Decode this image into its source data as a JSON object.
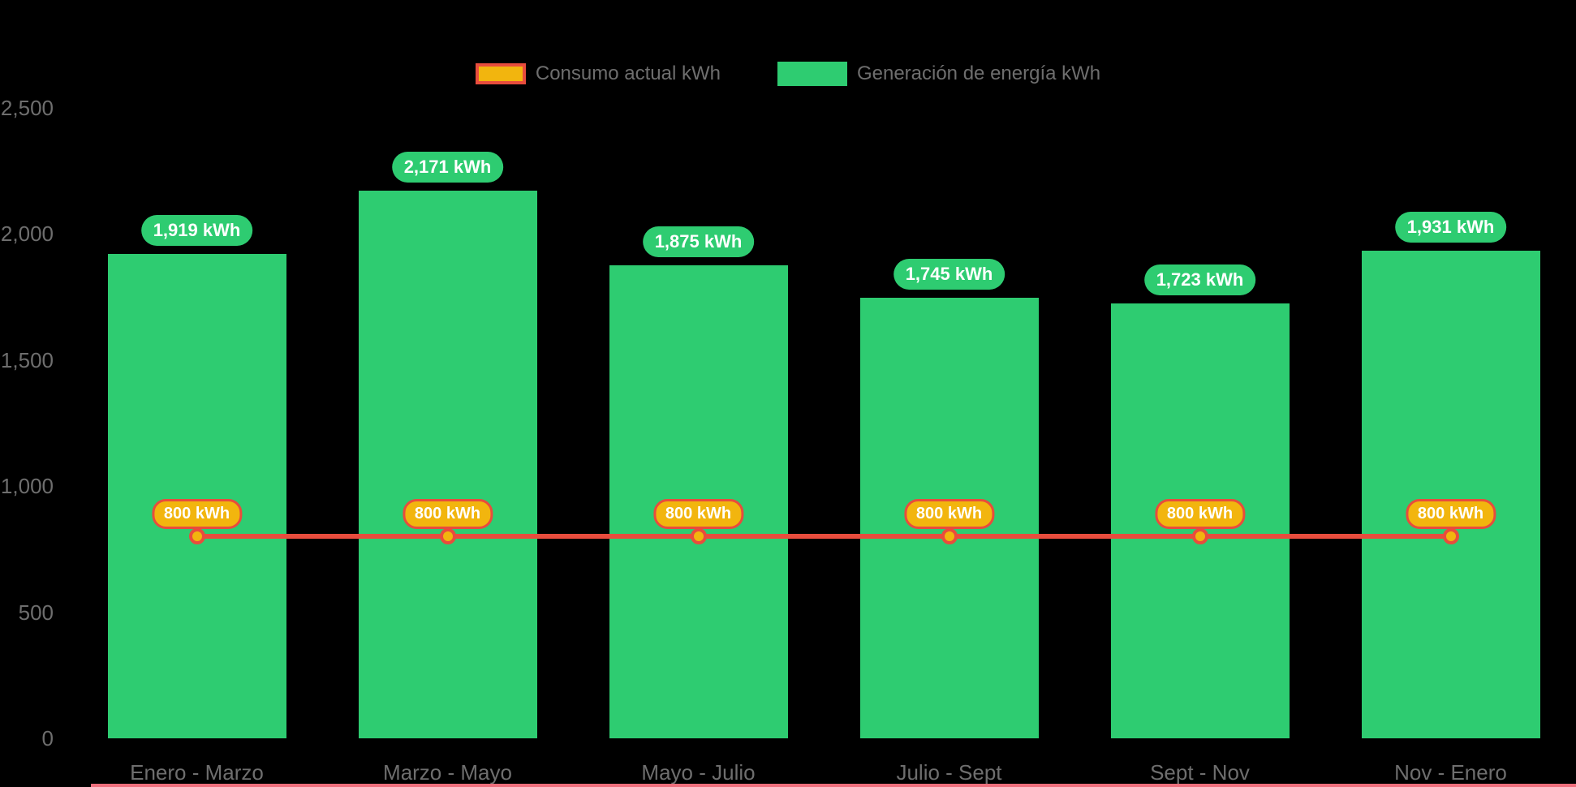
{
  "chart_data": {
    "type": "bar",
    "title": "",
    "categories": [
      "Enero - Marzo",
      "Marzo - Mayo",
      "Mayo - Julio",
      "Julio - Sept",
      "Sept - Nov",
      "Nov - Enero"
    ],
    "series": [
      {
        "name": "Consumo actual kWh",
        "type": "line",
        "values": [
          800,
          800,
          800,
          800,
          800,
          800
        ],
        "labels": [
          "800 kWh",
          "800 kWh",
          "800 kWh",
          "800 kWh",
          "800 kWh",
          "800 kWh"
        ],
        "line_color": "#e84c3d",
        "marker_fill": "#f2b50e",
        "label_bg": "#f2b50e",
        "label_border": "#e84c3d"
      },
      {
        "name": "Generación de energía kWh",
        "type": "bar",
        "values": [
          1919,
          2171,
          1875,
          1745,
          1723,
          1931
        ],
        "labels": [
          "1,919 kWh",
          "2,171 kWh",
          "1,875 kWh",
          "1,745 kWh",
          "1,723 kWh",
          "1,931 kWh"
        ],
        "color": "#2ecc71",
        "label_bg": "#2ecc71"
      }
    ],
    "ylim": [
      0,
      2500
    ],
    "ytick_values": [
      0,
      500,
      1000,
      1500,
      2000,
      2500
    ],
    "ytick_labels": [
      "0",
      "500",
      "1,000",
      "1,500",
      "2,000",
      "2,500"
    ],
    "legend_position": "top",
    "grid": false,
    "colors": {
      "background": "#000000",
      "axis_text": "#6e6e6e",
      "value_text": "#ffffff",
      "axis_line": "#ee6e7c"
    }
  }
}
